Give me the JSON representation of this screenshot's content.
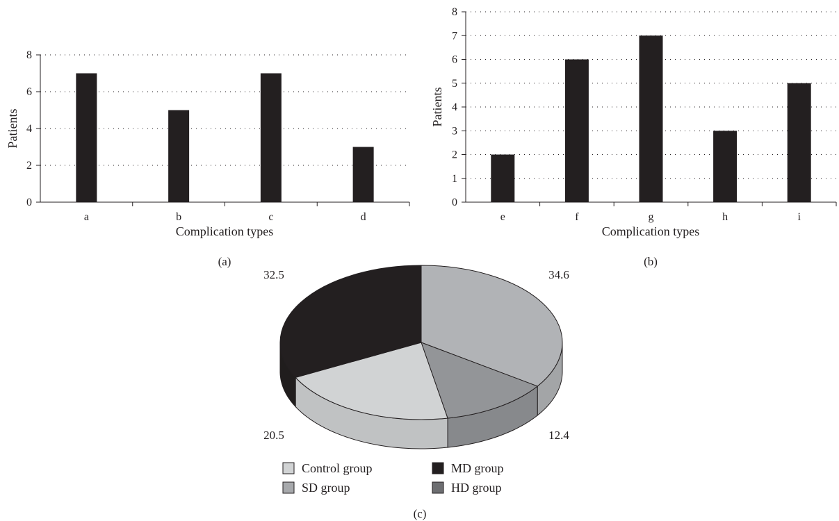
{
  "chart_data": [
    {
      "panel": "(a)",
      "type": "bar",
      "categories": [
        "a",
        "b",
        "c",
        "d"
      ],
      "values": [
        7,
        5,
        7,
        3
      ],
      "xlabel": "Complication types",
      "ylabel": "Patients",
      "ylim": [
        0,
        8
      ],
      "yticks": [
        0,
        2,
        4,
        6,
        8
      ],
      "grid": true,
      "bar_color": "#231f20"
    },
    {
      "panel": "(b)",
      "type": "bar",
      "categories": [
        "e",
        "f",
        "g",
        "h",
        "i"
      ],
      "values": [
        2,
        6,
        7,
        3,
        5
      ],
      "xlabel": "Complication types",
      "ylabel": "Patients",
      "ylim": [
        0,
        8
      ],
      "yticks": [
        0,
        1,
        2,
        3,
        4,
        5,
        6,
        7,
        8
      ],
      "grid": true,
      "bar_color": "#231f20"
    },
    {
      "panel": "(c)",
      "type": "pie",
      "slices": [
        {
          "name": "Control group",
          "value": 34.6,
          "label": "34.6",
          "color": "#b1b3b6"
        },
        {
          "name": "HD group",
          "value": 12.4,
          "label": "12.4",
          "color": "#939598"
        },
        {
          "name": "SD group",
          "value": 20.5,
          "label": "20.5",
          "color": "#d1d3d4"
        },
        {
          "name": "MD group",
          "value": 32.5,
          "label": "32.5",
          "color": "#231f20"
        }
      ],
      "legend": [
        {
          "name": "Control group",
          "color": "#d1d3d4"
        },
        {
          "name": "MD group",
          "color": "#231f20"
        },
        {
          "name": "SD group",
          "color": "#a7a9ac"
        },
        {
          "name": "HD group",
          "color": "#6d6e71"
        }
      ],
      "legend_position": "bottom"
    }
  ]
}
